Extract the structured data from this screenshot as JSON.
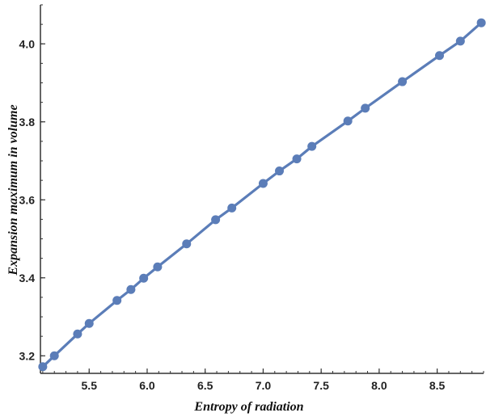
{
  "chart_data": {
    "type": "line",
    "title": "",
    "xlabel": "Entropy of radiation",
    "ylabel": "Expansion maximum in volume",
    "xlim": [
      5.08,
      8.9
    ],
    "ylim": [
      3.155,
      4.1
    ],
    "xticks": [
      "5.5",
      "6.0",
      "6.5",
      "7.0",
      "7.5",
      "8.0",
      "8.5"
    ],
    "yticks": [
      "3.2",
      "3.4",
      "3.6",
      "3.8",
      "4.0"
    ],
    "grid": false,
    "markers": true,
    "colors": {
      "series": "#5b7db8",
      "axis": "#333333"
    },
    "series": [
      {
        "x": [
          5.1,
          5.2,
          5.4,
          5.5,
          5.74,
          5.86,
          5.97,
          6.09,
          6.34,
          6.59,
          6.73,
          7.0,
          7.14,
          7.29,
          7.42,
          7.73,
          7.88,
          8.2,
          8.52,
          8.7,
          8.88
        ],
        "y": [
          3.172,
          3.2,
          3.256,
          3.283,
          3.342,
          3.37,
          3.399,
          3.428,
          3.487,
          3.549,
          3.579,
          3.642,
          3.674,
          3.705,
          3.737,
          3.802,
          3.835,
          3.903,
          3.97,
          4.007,
          4.054
        ]
      }
    ]
  }
}
